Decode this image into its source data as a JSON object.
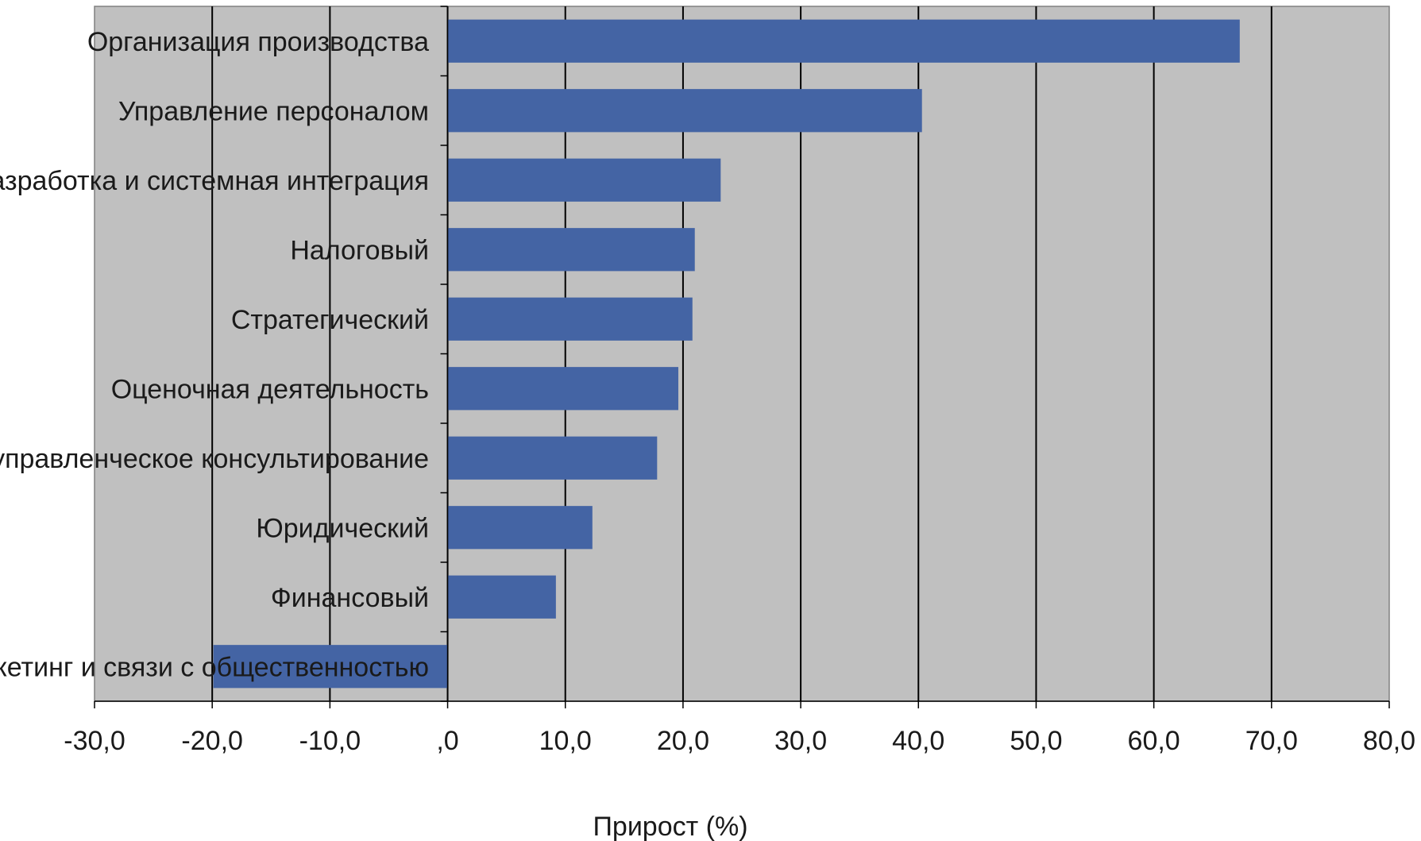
{
  "chart_data": {
    "type": "bar",
    "orientation": "horizontal",
    "categories": [
      "Организация производства",
      "Управление персоналом",
      "IT-разработка и системная интеграция",
      "Налоговый",
      "Стратегический",
      "Оценочная деятельность",
      "ИТ-управленческое консультирование",
      "Юридический",
      "Финансовый",
      "Маркетинг и связи с общественностью"
    ],
    "values": [
      67.3,
      40.3,
      23.2,
      21.0,
      20.8,
      19.6,
      17.8,
      12.3,
      9.2,
      -19.9
    ],
    "xlabel": "Прирост (%)",
    "xlim": [
      -30,
      80
    ],
    "xticks": [
      -30,
      -20,
      -10,
      0,
      10,
      20,
      30,
      40,
      50,
      60,
      70,
      80
    ],
    "xtick_labels": [
      "-30,0",
      "-20,0",
      "-10,0",
      ",0",
      "10,0",
      "20,0",
      "30,0",
      "40,0",
      "50,0",
      "60,0",
      "70,0",
      "80,0"
    ],
    "grid": true,
    "legend": "none",
    "colors": {
      "bar": "#4464a4",
      "plot_bg": "#c0c0c0",
      "gridline": "#000000"
    }
  }
}
